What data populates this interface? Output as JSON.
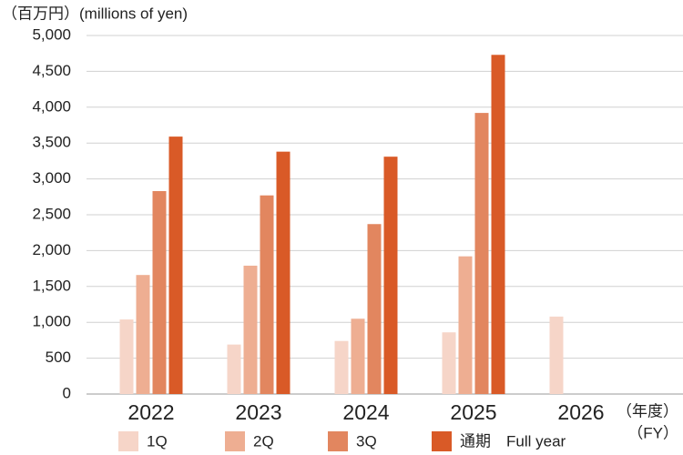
{
  "chart_data": {
    "type": "bar",
    "ylabel": "（百万円）(millions of yen)",
    "xlabel": [
      "（年度）",
      "（FY）"
    ],
    "categories": [
      "2022",
      "2023",
      "2024",
      "2025",
      "2026"
    ],
    "series": [
      {
        "name": "1Q",
        "color": "#f6d5c8",
        "values": [
          1040,
          690,
          740,
          860,
          1080
        ]
      },
      {
        "name": "2Q",
        "color": "#eeae92",
        "values": [
          1660,
          1790,
          1050,
          1920,
          null
        ]
      },
      {
        "name": "3Q",
        "color": "#e2865f",
        "values": [
          2830,
          2770,
          2370,
          3920,
          null
        ]
      },
      {
        "name": "通期　Full year",
        "color": "#d95a27",
        "values": [
          3590,
          3380,
          3310,
          4730,
          null
        ]
      }
    ],
    "ylim": [
      0,
      5000
    ],
    "yticks": [
      0,
      500,
      {
        "value": 1000,
        "label": "1,000"
      },
      {
        "value": 1500,
        "label": "1,500"
      },
      {
        "value": 2000,
        "label": "2,000"
      },
      {
        "value": 2500,
        "label": "2,500"
      },
      {
        "value": 3000,
        "label": "3,000"
      },
      {
        "value": 3500,
        "label": "3,500"
      },
      {
        "value": 4000,
        "label": "4,000"
      },
      {
        "value": 4500,
        "label": "4,500"
      },
      {
        "value": 5000,
        "label": "5,000"
      }
    ],
    "grid": true
  }
}
